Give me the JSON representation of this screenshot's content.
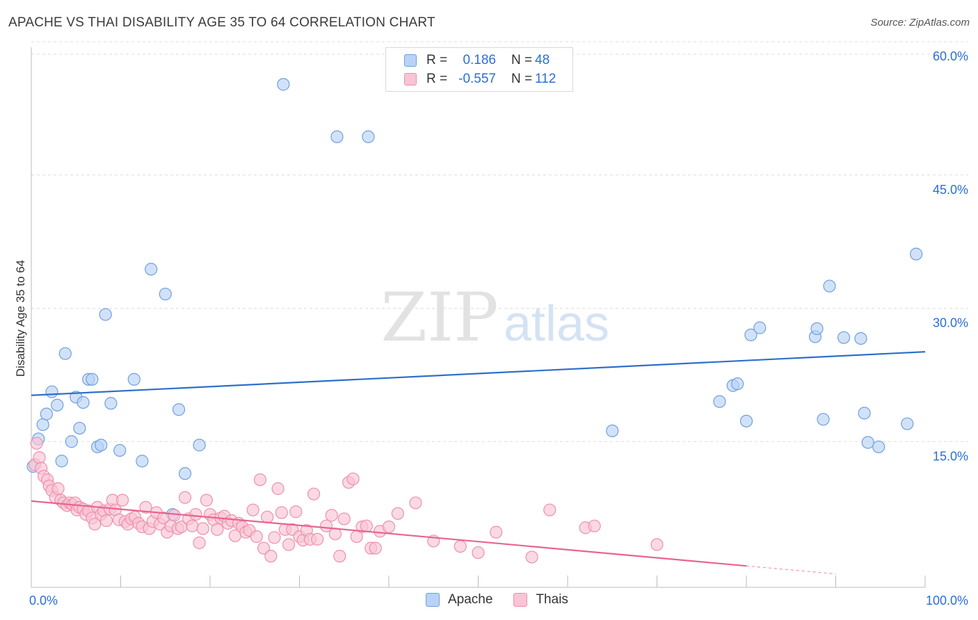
{
  "header": {
    "title": "APACHE VS THAI DISABILITY AGE 35 TO 64 CORRELATION CHART",
    "source": "Source: ZipAtlas.com"
  },
  "watermark": {
    "zip": "ZIP",
    "atlas": "atlas"
  },
  "legend": {
    "rows": [
      {
        "r_label": "R =",
        "r_value": "0.186",
        "n_label": "N =",
        "n_value": "48"
      },
      {
        "r_label": "R =",
        "r_value": "-0.557",
        "n_label": "N =",
        "n_value": "112"
      }
    ],
    "series": [
      "Apache",
      "Thais"
    ]
  },
  "colors": {
    "apache_fill": "#b8d3f5",
    "apache_stroke": "#6f9fe0",
    "apache_line": "#2d70c9",
    "thais_fill": "#f9c4d4",
    "thais_stroke": "#ee8fae",
    "thais_line": "#e8648f",
    "tick_text": "#2a6ed6",
    "grid": "#dcdcdc"
  },
  "chart_data": {
    "type": "scatter",
    "title": "APACHE VS THAI DISABILITY AGE 35 TO 64 CORRELATION CHART",
    "xlabel": "",
    "ylabel": "Disability Age 35 to 64",
    "xlim": [
      0,
      100
    ],
    "ylim": [
      0,
      60
    ],
    "x_tick_labels": [
      "0.0%",
      "100.0%"
    ],
    "y_ticks": [
      15,
      30,
      45,
      60
    ],
    "y_tick_labels": [
      "15.0%",
      "30.0%",
      "45.0%",
      "60.0%"
    ],
    "grid": true,
    "legend_position": "top-center",
    "series": [
      {
        "name": "Apache",
        "r": 0.186,
        "n": 48,
        "trend": {
          "x": [
            0,
            100
          ],
          "y": [
            20.2,
            25.1
          ]
        },
        "points": [
          [
            0.2,
            12.2
          ],
          [
            0.8,
            15.3
          ],
          [
            1.3,
            16.9
          ],
          [
            1.7,
            18.1
          ],
          [
            2.3,
            20.6
          ],
          [
            2.9,
            19.1
          ],
          [
            3.4,
            12.8
          ],
          [
            3.8,
            24.9
          ],
          [
            4.5,
            15.0
          ],
          [
            5.0,
            20.0
          ],
          [
            5.4,
            16.5
          ],
          [
            5.8,
            19.4
          ],
          [
            6.4,
            22.0
          ],
          [
            6.8,
            22.0
          ],
          [
            7.4,
            14.4
          ],
          [
            7.8,
            14.6
          ],
          [
            8.3,
            29.3
          ],
          [
            8.9,
            19.3
          ],
          [
            9.9,
            14.0
          ],
          [
            11.5,
            22.0
          ],
          [
            12.4,
            12.8
          ],
          [
            13.4,
            34.4
          ],
          [
            15.0,
            31.6
          ],
          [
            15.8,
            6.8
          ],
          [
            16.5,
            18.6
          ],
          [
            17.2,
            11.4
          ],
          [
            18.8,
            14.6
          ],
          [
            28.2,
            55.2
          ],
          [
            34.2,
            49.3
          ],
          [
            37.7,
            49.3
          ],
          [
            65.0,
            16.2
          ],
          [
            77.0,
            19.5
          ],
          [
            78.5,
            21.3
          ],
          [
            79.0,
            21.5
          ],
          [
            80.0,
            17.3
          ],
          [
            80.5,
            27.0
          ],
          [
            81.5,
            27.8
          ],
          [
            87.7,
            26.8
          ],
          [
            87.9,
            27.7
          ],
          [
            88.6,
            17.5
          ],
          [
            89.3,
            32.5
          ],
          [
            90.9,
            26.7
          ],
          [
            92.8,
            26.6
          ],
          [
            93.2,
            18.2
          ],
          [
            93.6,
            14.9
          ],
          [
            94.8,
            14.4
          ],
          [
            98.0,
            17.0
          ],
          [
            99.0,
            36.1
          ]
        ]
      },
      {
        "name": "Thais",
        "r": -0.557,
        "n": 112,
        "trend": {
          "x": [
            0,
            80
          ],
          "y": [
            8.3,
            1.0
          ]
        },
        "trend_dashed": {
          "x": [
            80,
            90
          ],
          "y": [
            1.0,
            0.1
          ]
        },
        "points": [
          [
            0.4,
            12.4
          ],
          [
            0.6,
            14.8
          ],
          [
            0.9,
            13.2
          ],
          [
            1.1,
            12.0
          ],
          [
            1.4,
            11.1
          ],
          [
            1.8,
            10.7
          ],
          [
            2.0,
            10.0
          ],
          [
            2.3,
            9.5
          ],
          [
            2.7,
            8.7
          ],
          [
            3.0,
            9.7
          ],
          [
            3.3,
            8.4
          ],
          [
            3.6,
            8.1
          ],
          [
            4.0,
            7.8
          ],
          [
            4.3,
            8.1
          ],
          [
            4.6,
            7.9
          ],
          [
            4.9,
            8.1
          ],
          [
            5.1,
            7.3
          ],
          [
            5.4,
            7.6
          ],
          [
            5.8,
            7.4
          ],
          [
            6.1,
            6.8
          ],
          [
            6.4,
            7.2
          ],
          [
            6.8,
            6.4
          ],
          [
            7.1,
            5.7
          ],
          [
            7.4,
            7.6
          ],
          [
            7.8,
            6.8
          ],
          [
            8.1,
            7.2
          ],
          [
            8.4,
            6.1
          ],
          [
            8.8,
            7.4
          ],
          [
            9.1,
            8.4
          ],
          [
            9.4,
            7.3
          ],
          [
            9.8,
            6.2
          ],
          [
            10.2,
            8.4
          ],
          [
            10.5,
            6.0
          ],
          [
            10.8,
            5.7
          ],
          [
            11.2,
            6.3
          ],
          [
            11.6,
            6.5
          ],
          [
            12.0,
            5.8
          ],
          [
            12.4,
            5.4
          ],
          [
            12.8,
            7.6
          ],
          [
            13.2,
            5.2
          ],
          [
            13.6,
            6.0
          ],
          [
            14.0,
            7.0
          ],
          [
            14.4,
            5.7
          ],
          [
            14.8,
            6.4
          ],
          [
            15.2,
            4.8
          ],
          [
            15.6,
            5.5
          ],
          [
            16.0,
            6.7
          ],
          [
            16.4,
            5.2
          ],
          [
            16.8,
            5.4
          ],
          [
            17.2,
            8.7
          ],
          [
            17.6,
            6.3
          ],
          [
            18.0,
            5.5
          ],
          [
            18.4,
            6.8
          ],
          [
            18.8,
            3.6
          ],
          [
            19.2,
            5.2
          ],
          [
            19.6,
            8.4
          ],
          [
            20.0,
            6.8
          ],
          [
            20.4,
            6.2
          ],
          [
            20.8,
            5.1
          ],
          [
            21.2,
            6.4
          ],
          [
            21.6,
            6.6
          ],
          [
            22.0,
            5.8
          ],
          [
            22.4,
            6.1
          ],
          [
            22.8,
            4.4
          ],
          [
            23.2,
            5.8
          ],
          [
            23.6,
            5.4
          ],
          [
            24.0,
            4.8
          ],
          [
            24.4,
            5.0
          ],
          [
            24.8,
            7.3
          ],
          [
            25.2,
            4.3
          ],
          [
            25.6,
            10.7
          ],
          [
            26.0,
            3.0
          ],
          [
            26.4,
            6.5
          ],
          [
            26.8,
            2.1
          ],
          [
            27.2,
            4.2
          ],
          [
            27.6,
            9.7
          ],
          [
            28.0,
            7.0
          ],
          [
            28.4,
            5.1
          ],
          [
            28.8,
            3.4
          ],
          [
            29.2,
            5.1
          ],
          [
            29.6,
            7.1
          ],
          [
            30.0,
            4.3
          ],
          [
            30.4,
            3.9
          ],
          [
            30.8,
            5.0
          ],
          [
            31.2,
            4.0
          ],
          [
            31.6,
            9.1
          ],
          [
            32.0,
            4.0
          ],
          [
            33.0,
            5.5
          ],
          [
            33.6,
            6.7
          ],
          [
            34.0,
            4.6
          ],
          [
            34.5,
            2.1
          ],
          [
            35.0,
            6.3
          ],
          [
            35.5,
            10.4
          ],
          [
            36.0,
            10.8
          ],
          [
            36.4,
            4.3
          ],
          [
            37.0,
            5.4
          ],
          [
            37.5,
            5.5
          ],
          [
            38.0,
            3.0
          ],
          [
            38.5,
            3.0
          ],
          [
            39.0,
            4.9
          ],
          [
            40.0,
            5.4
          ],
          [
            41.0,
            6.9
          ],
          [
            43.0,
            8.1
          ],
          [
            45.0,
            3.8
          ],
          [
            48.0,
            3.2
          ],
          [
            50.0,
            2.5
          ],
          [
            52.0,
            4.8
          ],
          [
            56.0,
            2.0
          ],
          [
            58.0,
            7.3
          ],
          [
            62.0,
            5.3
          ],
          [
            63.0,
            5.5
          ],
          [
            70.0,
            3.4
          ]
        ]
      }
    ]
  }
}
